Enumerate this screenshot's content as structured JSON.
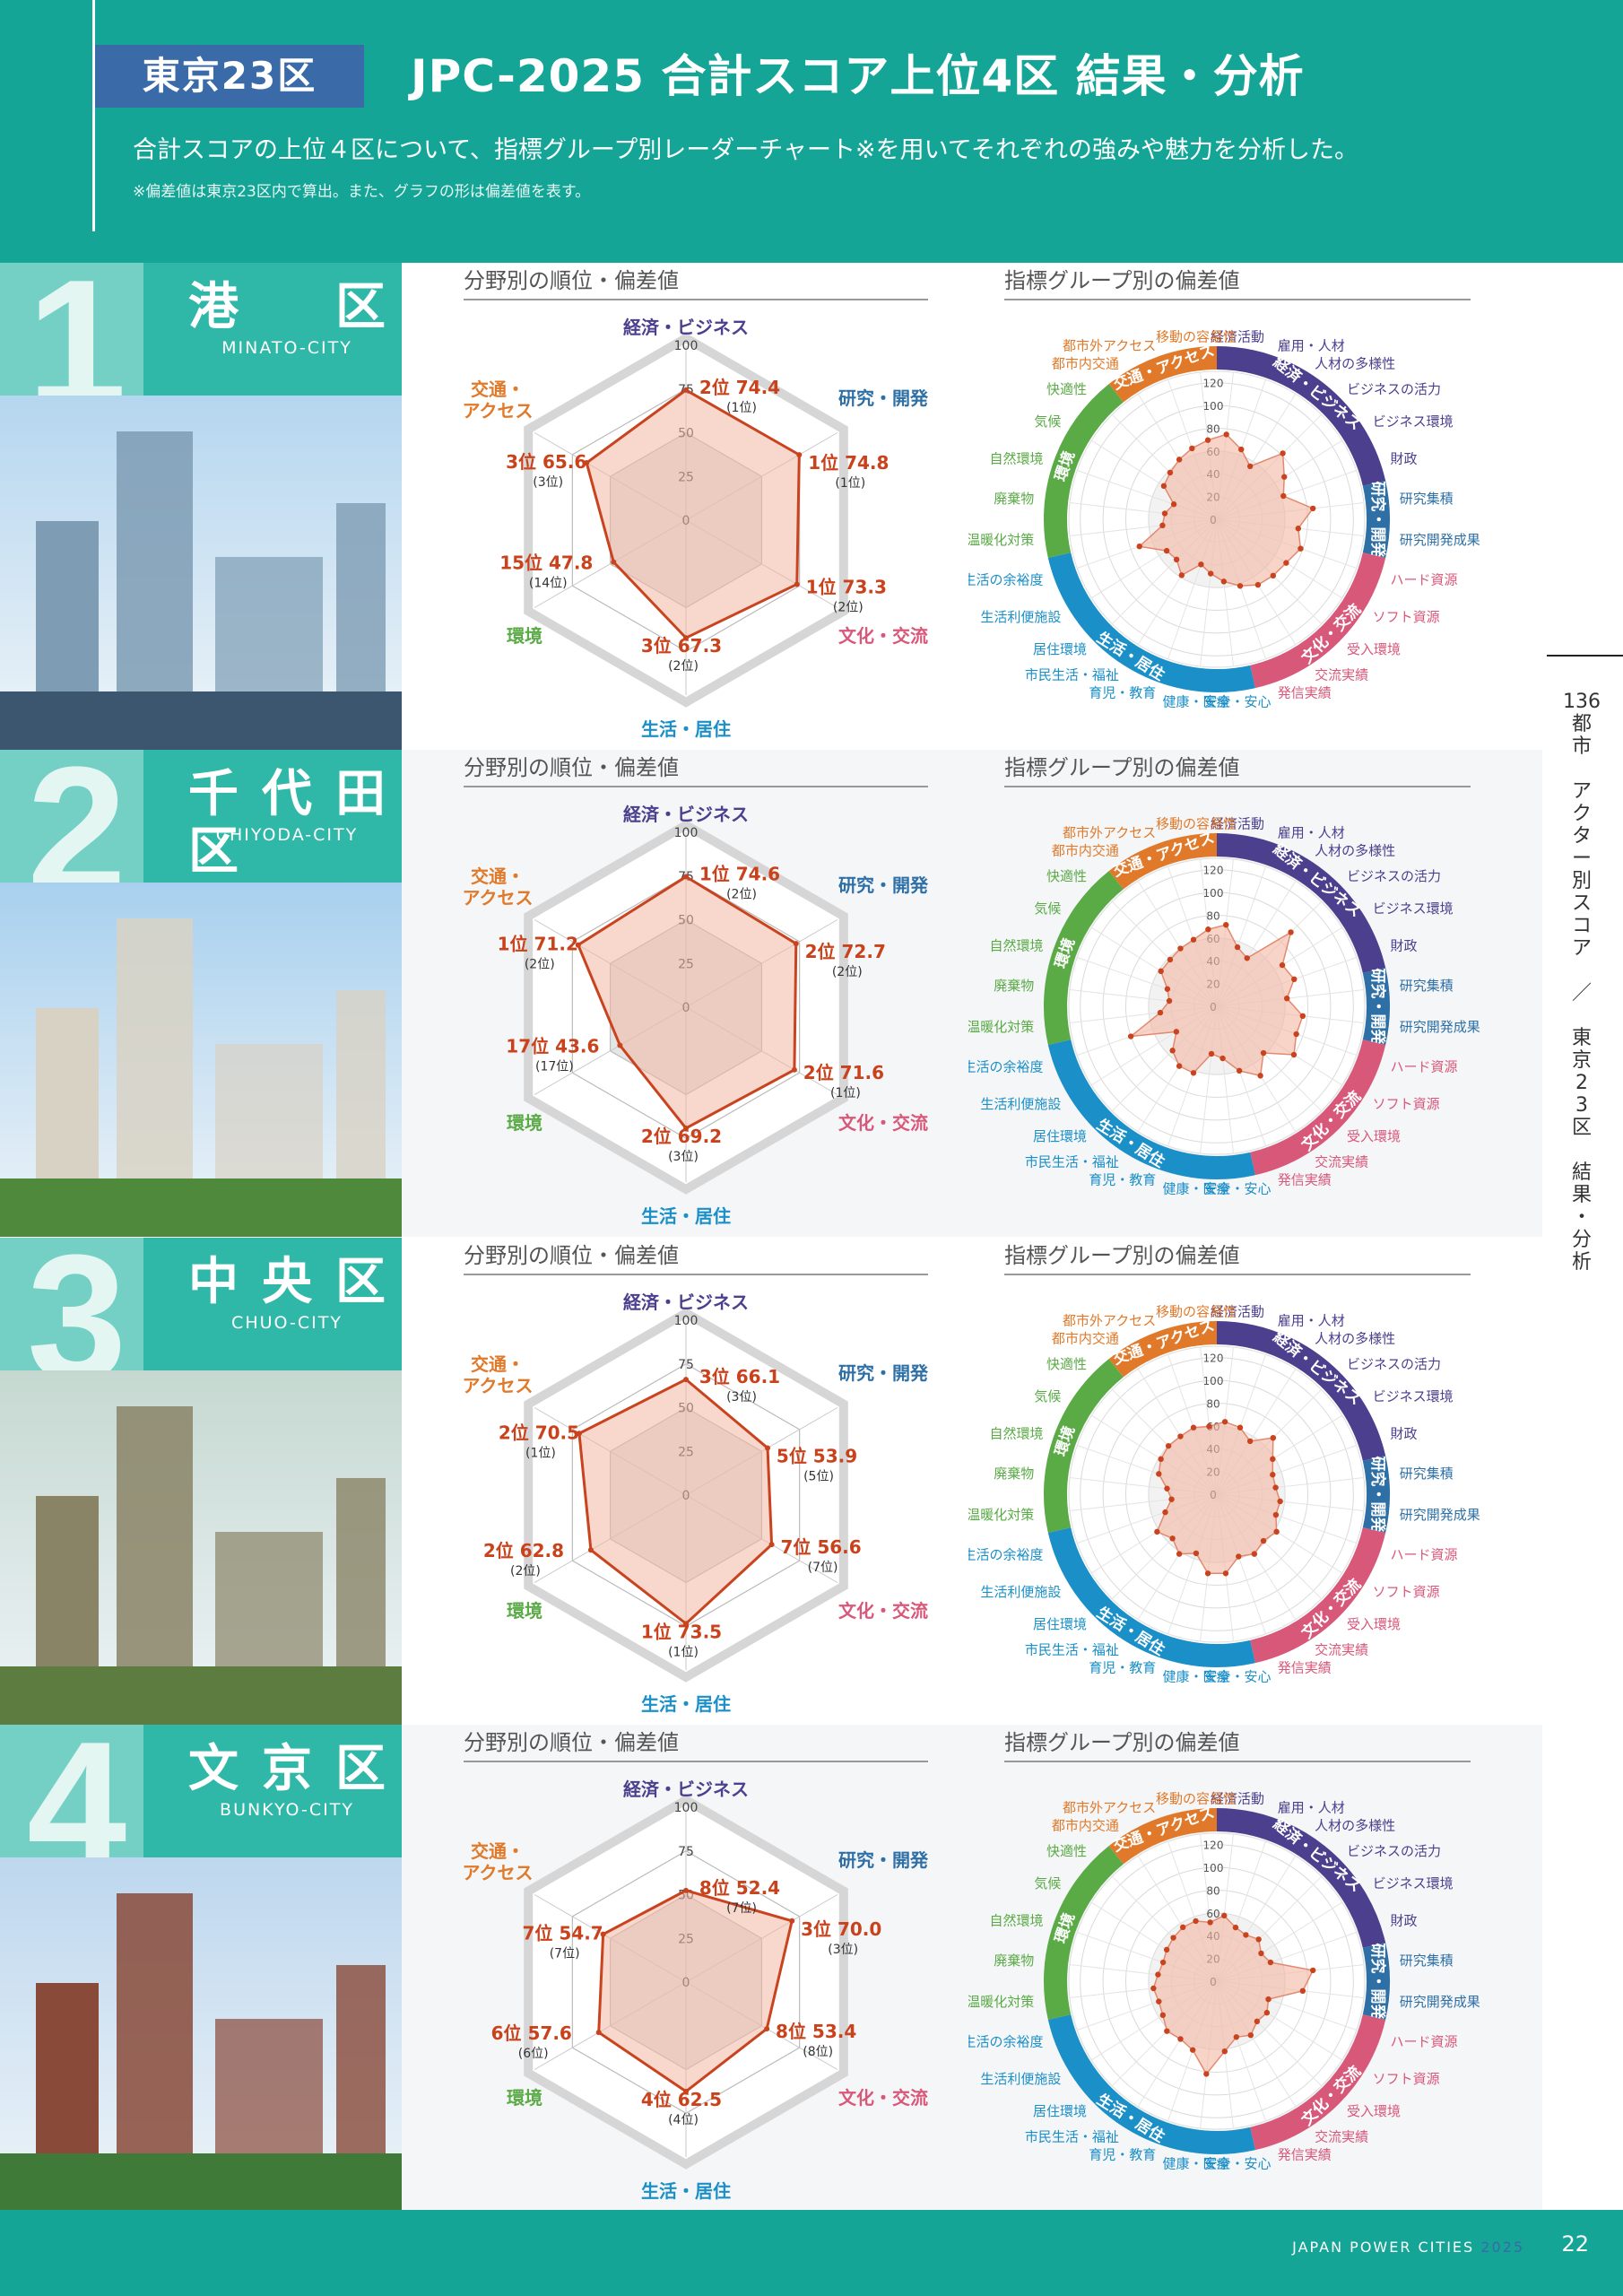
{
  "header": {
    "tag": "東京23区",
    "title": "JPC-2025 合計スコア上位4区 結果・分析",
    "subtitle": "合計スコアの上位４区について、指標グループ別レーダーチャート※を用いてそれぞれの強みや魅力を分析した。",
    "note": "※偏差値は東京23区内で算出。また、グラフの形は偏差値を表す。"
  },
  "panel_titles": {
    "left": "分野別の順位・偏差値",
    "right": "指標グループ別の偏差値"
  },
  "sidebar": {
    "label_num": "136",
    "label_text": "都市 アクター別スコア ／ 東京23区 結果・分析"
  },
  "footer": {
    "brand": "JAPAN POWER CITIES",
    "year": "2025",
    "page": "22"
  },
  "colors": {
    "teal": "#14a596",
    "econ": "#4b3f8e",
    "research": "#2e6fa6",
    "culture": "#d8587a",
    "living": "#1a8fc8",
    "env": "#5aaa46",
    "access": "#e07a2a",
    "rank_text": "#c9421b",
    "radar_line": "#c8431e"
  },
  "axis_labels": [
    "経済・ビジネス",
    "研究・開発",
    "文化・交流",
    "生活・居住",
    "環境",
    "交通・\nアクセス"
  ],
  "radar_ticks": [
    "100",
    "75",
    "50",
    "25",
    "0"
  ],
  "group_labels": [
    "経済・ビジネス",
    "研究・開発",
    "文化・交流",
    "生活・居住",
    "環境",
    "交通・アクセス"
  ],
  "indicators": [
    "経済活動",
    "雇用・人材",
    "人材の多様性",
    "ビジネスの活力",
    "ビジネス環境",
    "財政",
    "研究集積",
    "研究開発成果",
    "ハード資源",
    "ソフト資源",
    "受入環境",
    "交流実績",
    "発信実績",
    "安全・安心",
    "健康・医療",
    "育児・教育",
    "市民生活・福祉",
    "居住環境",
    "生活利便施設",
    "生活の余裕度",
    "温暖化対策",
    "廃棄物",
    "自然環境",
    "気候",
    "快適性",
    "都市内交通",
    "都市外アクセス",
    "移動の容易性"
  ],
  "ind_ticks": [
    "120",
    "100",
    "80",
    "60",
    "40",
    "20",
    "0"
  ],
  "chart_data": [
    {
      "type": "radar",
      "rank": "1",
      "city": "港 区",
      "city_en": "MINATO-CITY",
      "fields": [
        {
          "label": "2位 74.4",
          "rank_note": "(1位)",
          "value": 74.4
        },
        {
          "label": "1位 74.8",
          "rank_note": "(1位)",
          "value": 74.8
        },
        {
          "label": "1位 73.3",
          "rank_note": "(2位)",
          "value": 73.3
        },
        {
          "label": "3位 67.3",
          "rank_note": "(2位)",
          "value": 67.3
        },
        {
          "label": "15位 47.8",
          "rank_note": "(14位)",
          "value": 47.8
        },
        {
          "label": "3位 65.6",
          "rank_note": "(3位)",
          "value": 65.6
        }
      ],
      "indicator_values": [
        75,
        65,
        55,
        82,
        70,
        62,
        85,
        72,
        78,
        72,
        70,
        68,
        62,
        55,
        48,
        42,
        58,
        50,
        52,
        72,
        48,
        46,
        40,
        55,
        58,
        62,
        66,
        70
      ]
    },
    {
      "type": "radar",
      "rank": "2",
      "city": "千代田区",
      "city_en": "CHIYODA-CITY",
      "fields": [
        {
          "label": "1位 74.6",
          "rank_note": "(2位)",
          "value": 74.6
        },
        {
          "label": "2位 72.7",
          "rank_note": "(2位)",
          "value": 72.7
        },
        {
          "label": "2位 71.6",
          "rank_note": "(1位)",
          "value": 71.6
        },
        {
          "label": "2位 69.2",
          "rank_note": "(3位)",
          "value": 69.2
        },
        {
          "label": "17位 43.6",
          "rank_note": "(17位)",
          "value": 43.6
        },
        {
          "label": "1位 71.2",
          "rank_note": "(2位)",
          "value": 71.2
        }
      ],
      "indicator_values": [
        72,
        55,
        50,
        92,
        68,
        72,
        62,
        76,
        74,
        80,
        58,
        72,
        60,
        46,
        42,
        62,
        62,
        55,
        42,
        80,
        50,
        42,
        46,
        58,
        58,
        60,
        62,
        68
      ]
    },
    {
      "type": "radar",
      "rank": "3",
      "city": "中 央 区",
      "city_en": "CHUO-CITY",
      "fields": [
        {
          "label": "3位 66.1",
          "rank_note": "(3位)",
          "value": 66.1
        },
        {
          "label": "5位 53.9",
          "rank_note": "(5位)",
          "value": 53.9
        },
        {
          "label": "7位 56.6",
          "rank_note": "(7位)",
          "value": 56.6
        },
        {
          "label": "1位 73.5",
          "rank_note": "(1位)",
          "value": 73.5
        },
        {
          "label": "2位 62.8",
          "rank_note": "(2位)",
          "value": 62.8
        },
        {
          "label": "2位 70.5",
          "rank_note": "(1位)",
          "value": 70.5
        }
      ],
      "indicator_values": [
        64,
        62,
        55,
        70,
        58,
        52,
        52,
        56,
        55,
        62,
        58,
        62,
        58,
        70,
        70,
        55,
        62,
        55,
        62,
        48,
        40,
        44,
        54,
        58,
        60,
        60,
        62,
        60
      ]
    },
    {
      "type": "radar",
      "rank": "4",
      "city": "文 京 区",
      "city_en": "BUNKYO-CITY",
      "fields": [
        {
          "label": "8位 52.4",
          "rank_note": "(7位)",
          "value": 52.4
        },
        {
          "label": "3位 70.0",
          "rank_note": "(3位)",
          "value": 70.0
        },
        {
          "label": "8位 53.4",
          "rank_note": "(8位)",
          "value": 53.4
        },
        {
          "label": "4位 62.5",
          "rank_note": "(4位)",
          "value": 62.5
        },
        {
          "label": "6位 57.6",
          "rank_note": "(6位)",
          "value": 57.6
        },
        {
          "label": "7位 54.7",
          "rank_note": "(7位)",
          "value": 54.7
        }
      ],
      "indicator_values": [
        58,
        50,
        48,
        52,
        46,
        50,
        85,
        76,
        48,
        52,
        50,
        56,
        52,
        62,
        82,
        64,
        60,
        62,
        56,
        54,
        56,
        52,
        50,
        52,
        54,
        56,
        56,
        52
      ]
    }
  ]
}
